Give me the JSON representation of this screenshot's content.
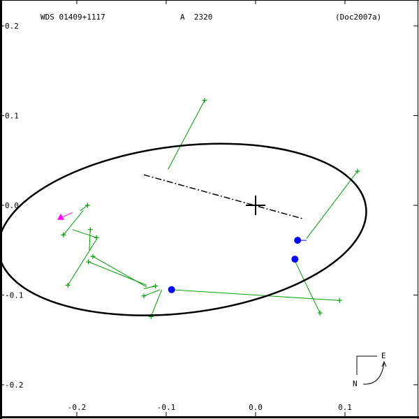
{
  "header": {
    "wds_id": "WDS 01409+1117",
    "discoverer": "A  2320",
    "reference": "(Doc2007a)"
  },
  "colors": {
    "orbit": "#000000",
    "observations": "#00a000",
    "residual_blue": "#0000ff",
    "first_obs_marker": "#ff00ff",
    "axes": "#000000"
  },
  "compass": {
    "north_label": "N",
    "east_label": "E"
  },
  "chart_data": {
    "type": "scatter",
    "title": "WDS 01409+1117   A 2320   (Doc2007a)",
    "xlabel": "",
    "ylabel": "",
    "xlim": [
      -0.285,
      0.18
    ],
    "ylim": [
      -0.235,
      0.205
    ],
    "grid": false,
    "x_ticks": [
      "-0.2",
      "-0.1",
      "0.0",
      "0.1"
    ],
    "y_ticks": [
      "0.2",
      "0.1",
      "0.0",
      "-0.1",
      "-0.2"
    ],
    "primary_star": [
      0.0,
      0.0
    ],
    "orbit_ellipse": {
      "center": [
        -0.082,
        -0.027
      ],
      "semi_axes": [
        0.207,
        0.093
      ],
      "rotation_deg": -7
    },
    "line_of_nodes": [
      [
        -0.125,
        0.034
      ],
      [
        0.053,
        -0.015
      ]
    ],
    "observations_green": [
      {
        "obs": [
          -0.057,
          0.117
        ],
        "orbit_pt": [
          -0.098,
          0.04
        ]
      },
      {
        "obs": [
          0.114,
          0.038
        ],
        "orbit_pt": [
          0.057,
          -0.037
        ]
      },
      {
        "obs": [
          0.072,
          -0.12
        ],
        "orbit_pt": [
          0.043,
          -0.06
        ]
      },
      {
        "obs": [
          0.094,
          -0.106
        ],
        "orbit_pt": [
          -0.095,
          -0.094
        ]
      },
      {
        "obs": [
          -0.188,
          0.0
        ],
        "orbit_pt": [
          -0.196,
          -0.006
        ]
      },
      {
        "obs": [
          -0.21,
          -0.089
        ],
        "orbit_pt": [
          -0.178,
          -0.038
        ]
      },
      {
        "obs": [
          -0.215,
          -0.033
        ],
        "orbit_pt": [
          -0.193,
          -0.006
        ]
      },
      {
        "obs": [
          -0.185,
          -0.027
        ],
        "orbit_pt": [
          -0.186,
          -0.05
        ]
      },
      {
        "obs": [
          -0.178,
          -0.036
        ],
        "orbit_pt": [
          -0.205,
          -0.027
        ]
      },
      {
        "obs": [
          -0.187,
          -0.063
        ],
        "orbit_pt": [
          -0.122,
          -0.089
        ]
      },
      {
        "obs": [
          -0.182,
          -0.057
        ],
        "orbit_pt": [
          -0.122,
          -0.091
        ]
      },
      {
        "obs": [
          -0.112,
          -0.09
        ],
        "orbit_pt": [
          -0.125,
          -0.093
        ]
      },
      {
        "obs": [
          -0.125,
          -0.101
        ],
        "orbit_pt": [
          -0.107,
          -0.094
        ]
      },
      {
        "obs": [
          -0.117,
          -0.124
        ],
        "orbit_pt": [
          -0.105,
          -0.094
        ]
      }
    ],
    "observations_blue": [
      {
        "obs": [
          0.047,
          -0.039
        ],
        "orbit_pt": [
          0.057,
          -0.039
        ]
      },
      {
        "obs": [
          0.044,
          -0.06
        ],
        "orbit_pt": [
          0.045,
          -0.058
        ]
      },
      {
        "obs": [
          -0.094,
          -0.094
        ],
        "orbit_pt": [
          -0.094,
          -0.094
        ]
      }
    ],
    "first_observation": [
      -0.218,
      -0.013
    ]
  }
}
